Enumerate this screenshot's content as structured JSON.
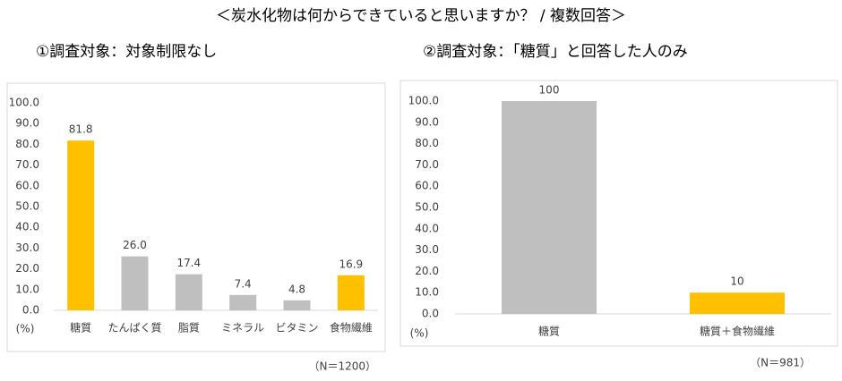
{
  "title": "＜炭水化物は何からできていると思いますか？ / 複数回答＞",
  "chart_data": [
    {
      "type": "bar",
      "subtitle": "①調査対象：対象制限なし",
      "y_unit": "(%)",
      "note": "（N＝1200）",
      "categories": [
        "糖質",
        "たんぱく質",
        "脂質",
        "ミネラル",
        "ビタミン",
        "食物繊維"
      ],
      "values": [
        81.8,
        26.0,
        17.4,
        7.4,
        4.8,
        16.9
      ],
      "value_labels": [
        "81.8",
        "26.0",
        "17.4",
        "7.4",
        "4.8",
        "16.9"
      ],
      "colors": [
        "#ffc000",
        "#bfbfbf",
        "#bfbfbf",
        "#bfbfbf",
        "#bfbfbf",
        "#ffc000"
      ],
      "ylim": [
        0,
        100
      ],
      "yticks": [
        {
          "value": 0,
          "label": "0.0"
        },
        {
          "value": 10,
          "label": "10.0"
        },
        {
          "value": 20,
          "label": "20.0"
        },
        {
          "value": 30,
          "label": "30.0"
        },
        {
          "value": 40,
          "label": "40.0"
        },
        {
          "value": 50,
          "label": "50.0"
        },
        {
          "value": 60,
          "label": "60.0"
        },
        {
          "value": 70,
          "label": "70.0"
        },
        {
          "value": 80,
          "label": "80.0"
        },
        {
          "value": 90,
          "label": "90.0"
        },
        {
          "value": 100,
          "label": "100.0"
        }
      ],
      "grid": false
    },
    {
      "type": "bar",
      "subtitle": "②調査対象：「糖質」と回答した人のみ",
      "y_unit": "(%)",
      "note": "（N＝981）",
      "categories": [
        "糖質",
        "糖質＋食物繊維"
      ],
      "values": [
        100,
        10
      ],
      "colors": [
        "#bfbfbf",
        "#ffc000"
      ],
      "ylim": [
        0,
        100
      ],
      "yticks": [
        {
          "value": 0,
          "label": "0.0"
        },
        {
          "value": 10,
          "label": "10.0"
        },
        {
          "value": 20,
          "label": "20.0"
        },
        {
          "value": 30,
          "label": "30.0"
        },
        {
          "value": 40,
          "label": "40.0"
        },
        {
          "value": 50,
          "label": "50.0"
        },
        {
          "value": 60,
          "label": "60.0"
        },
        {
          "value": 70,
          "label": "70.0"
        },
        {
          "value": 80,
          "label": "80.0"
        },
        {
          "value": 90,
          "label": "90.0"
        },
        {
          "value": 100,
          "label": "100.0"
        }
      ],
      "grid": false
    }
  ]
}
